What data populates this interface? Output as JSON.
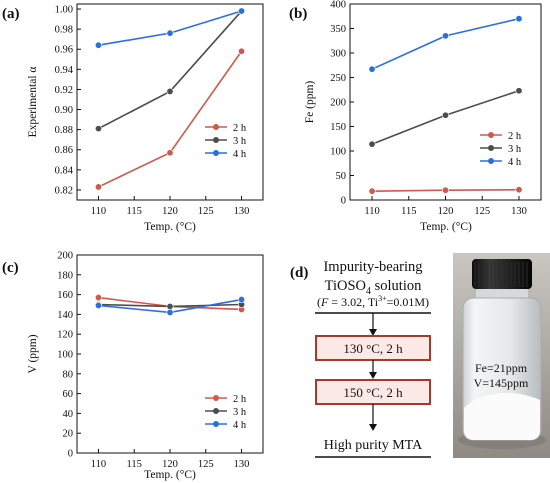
{
  "chart_data": [
    {
      "panel": "(a)",
      "type": "line",
      "x": [
        110,
        120,
        130
      ],
      "xlabel": "Temp. (°C)",
      "ylabel": "Experimental α",
      "xticks": [
        110,
        115,
        120,
        125,
        130
      ],
      "xlim": [
        107,
        133
      ],
      "yticks": [
        0.82,
        0.84,
        0.86,
        0.88,
        0.9,
        0.92,
        0.94,
        0.96,
        0.98,
        1.0
      ],
      "ylim": [
        0.81,
        1.005
      ],
      "legend_position": "center-right",
      "series": [
        {
          "name": "2 h",
          "color": "#d0594a",
          "values": [
            0.823,
            0.857,
            0.958
          ]
        },
        {
          "name": "3 h",
          "color": "#4d4d4d",
          "values": [
            0.881,
            0.918,
            0.998
          ]
        },
        {
          "name": "4 h",
          "color": "#2a6fe0",
          "values": [
            0.964,
            0.976,
            0.998
          ]
        }
      ]
    },
    {
      "panel": "(b)",
      "type": "line",
      "x": [
        110,
        120,
        130
      ],
      "xlabel": "Temp. (°C)",
      "ylabel": "Fe (ppm)",
      "xticks": [
        110,
        115,
        120,
        125,
        130
      ],
      "xlim": [
        107,
        133
      ],
      "yticks": [
        0,
        50,
        100,
        150,
        200,
        250,
        300,
        350,
        400
      ],
      "ylim": [
        0,
        400
      ],
      "legend_position": "bottom-right",
      "series": [
        {
          "name": "2 h",
          "color": "#d0594a",
          "values": [
            18,
            20,
            21
          ]
        },
        {
          "name": "3 h",
          "color": "#4d4d4d",
          "values": [
            114,
            173,
            223
          ]
        },
        {
          "name": "4 h",
          "color": "#2a6fe0",
          "values": [
            267,
            335,
            370
          ]
        }
      ]
    },
    {
      "panel": "(c)",
      "type": "line",
      "x": [
        110,
        120,
        130
      ],
      "xlabel": "Temp. (°C)",
      "ylabel": "V (ppm)",
      "xticks": [
        110,
        115,
        120,
        125,
        130
      ],
      "xlim": [
        107,
        133
      ],
      "yticks": [
        0,
        20,
        40,
        60,
        80,
        100,
        120,
        140,
        160,
        180,
        200
      ],
      "ylim": [
        0,
        200
      ],
      "legend_position": "bottom-right",
      "series": [
        {
          "name": "2 h",
          "color": "#d0594a",
          "values": [
            157,
            148,
            145
          ]
        },
        {
          "name": "3 h",
          "color": "#4d4d4d",
          "values": [
            150,
            148,
            150
          ]
        },
        {
          "name": "4 h",
          "color": "#2a6fe0",
          "values": [
            149,
            142,
            155
          ]
        }
      ]
    }
  ],
  "flow": {
    "panel": "(d)",
    "title_line1": "Impurity-bearing",
    "title_line2": "TiOSO",
    "title_line2_sub": "4",
    "title_line2_end": " solution",
    "conditions_open": "(",
    "conditions_F": "F",
    "conditions_mid": " = 3.02, Ti",
    "conditions_sup": "3+",
    "conditions_end": "=0.01M)",
    "step1": "130 °C, 2 h",
    "step2": "150 °C, 2 h",
    "product": "High purity MTA",
    "box_color": "#a33a2c"
  },
  "photo": {
    "fe_label": "Fe=21ppm",
    "v_label": "V=145ppm"
  }
}
